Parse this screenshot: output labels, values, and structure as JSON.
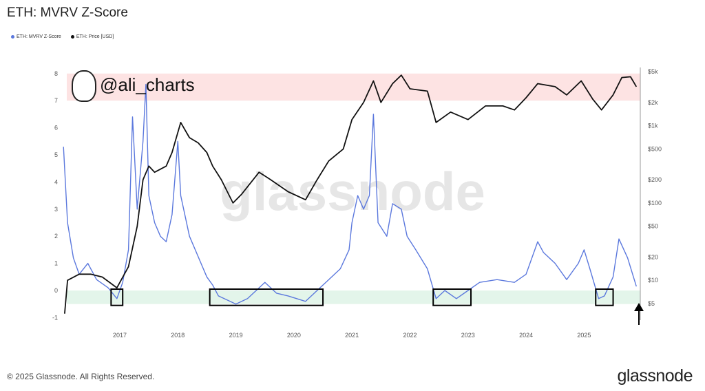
{
  "title": "ETH: MVRV Z-Score",
  "watermark": "glassnode",
  "handle": "@ali_charts",
  "footer": {
    "copyright": "© 2025 Glassnode. All Rights Reserved.",
    "brand": "glassnode"
  },
  "colors": {
    "zscore": "#5b78dd",
    "price": "#111111",
    "red_band": "#fde3e3",
    "green_band": "#e3f5ea"
  },
  "chart_data": {
    "type": "line",
    "title": "ETH: MVRV Z-Score",
    "legend": [
      "ETH: MVRV Z-Score",
      "ETH: Price [USD]"
    ],
    "legend_position": "top-left",
    "x_ticks": [
      "2017",
      "2018",
      "2019",
      "2020",
      "2021",
      "2022",
      "2023",
      "2024",
      "2025"
    ],
    "xlim": [
      2016.0,
      2026.0
    ],
    "y_left": {
      "ticks": [
        "8",
        "7",
        "6",
        "5",
        "4",
        "3",
        "2",
        "1",
        "0",
        "-1"
      ],
      "ylim": [
        -1,
        8
      ]
    },
    "y_right": {
      "scale": "log",
      "ticks": [
        "$5k",
        "$2k",
        "$1k",
        "$500",
        "$200",
        "$100",
        "$50",
        "$20",
        "$10",
        "$5"
      ],
      "values": [
        5000,
        2000,
        1000,
        500,
        200,
        100,
        50,
        20,
        10,
        5
      ]
    },
    "bands": [
      {
        "name": "red-zone",
        "from": 7,
        "to": 8
      },
      {
        "name": "green-zone",
        "from": -0.5,
        "to": 0
      }
    ],
    "boxes": [
      [
        2016.85,
        2017.05
      ],
      [
        2018.55,
        2020.5
      ],
      [
        2022.4,
        2023.05
      ],
      [
        2025.2,
        2025.5
      ]
    ],
    "series": [
      {
        "name": "ETH: MVRV Z-Score",
        "axis": "left",
        "points": [
          [
            2016.03,
            5.3
          ],
          [
            2016.1,
            2.5
          ],
          [
            2016.2,
            1.2
          ],
          [
            2016.3,
            0.6
          ],
          [
            2016.45,
            1.0
          ],
          [
            2016.6,
            0.4
          ],
          [
            2016.8,
            0.1
          ],
          [
            2016.95,
            -0.3
          ],
          [
            2017.05,
            0.3
          ],
          [
            2017.15,
            1.5
          ],
          [
            2017.22,
            6.4
          ],
          [
            2017.3,
            3.0
          ],
          [
            2017.4,
            5.5
          ],
          [
            2017.45,
            7.6
          ],
          [
            2017.5,
            3.5
          ],
          [
            2017.6,
            2.5
          ],
          [
            2017.7,
            2.0
          ],
          [
            2017.8,
            1.8
          ],
          [
            2017.9,
            2.8
          ],
          [
            2018.0,
            5.5
          ],
          [
            2018.05,
            3.5
          ],
          [
            2018.2,
            2.0
          ],
          [
            2018.3,
            1.5
          ],
          [
            2018.4,
            1.0
          ],
          [
            2018.5,
            0.5
          ],
          [
            2018.6,
            0.2
          ],
          [
            2018.7,
            -0.2
          ],
          [
            2018.9,
            -0.4
          ],
          [
            2019.0,
            -0.5
          ],
          [
            2019.2,
            -0.3
          ],
          [
            2019.4,
            0.1
          ],
          [
            2019.5,
            0.3
          ],
          [
            2019.7,
            -0.1
          ],
          [
            2019.9,
            -0.2
          ],
          [
            2020.2,
            -0.4
          ],
          [
            2020.4,
            0.0
          ],
          [
            2020.6,
            0.4
          ],
          [
            2020.8,
            0.8
          ],
          [
            2020.95,
            1.5
          ],
          [
            2021.0,
            2.5
          ],
          [
            2021.1,
            3.5
          ],
          [
            2021.2,
            3.0
          ],
          [
            2021.3,
            3.5
          ],
          [
            2021.37,
            6.5
          ],
          [
            2021.45,
            2.5
          ],
          [
            2021.6,
            2.0
          ],
          [
            2021.7,
            3.2
          ],
          [
            2021.85,
            3.0
          ],
          [
            2021.95,
            2.0
          ],
          [
            2022.1,
            1.5
          ],
          [
            2022.3,
            0.8
          ],
          [
            2022.45,
            -0.3
          ],
          [
            2022.6,
            0.0
          ],
          [
            2022.8,
            -0.3
          ],
          [
            2023.0,
            0.0
          ],
          [
            2023.2,
            0.3
          ],
          [
            2023.5,
            0.4
          ],
          [
            2023.8,
            0.3
          ],
          [
            2024.0,
            0.6
          ],
          [
            2024.2,
            1.8
          ],
          [
            2024.3,
            1.4
          ],
          [
            2024.5,
            1.0
          ],
          [
            2024.7,
            0.4
          ],
          [
            2024.9,
            1.0
          ],
          [
            2025.0,
            1.5
          ],
          [
            2025.1,
            0.8
          ],
          [
            2025.25,
            -0.3
          ],
          [
            2025.35,
            -0.2
          ],
          [
            2025.5,
            0.5
          ],
          [
            2025.6,
            1.9
          ],
          [
            2025.75,
            1.2
          ],
          [
            2025.9,
            0.15
          ]
        ]
      },
      {
        "name": "ETH: Price [USD]",
        "axis": "right",
        "points": [
          [
            2016.05,
            3.7
          ],
          [
            2016.1,
            10
          ],
          [
            2016.3,
            12
          ],
          [
            2016.5,
            12
          ],
          [
            2016.7,
            11
          ],
          [
            2016.95,
            8
          ],
          [
            2017.15,
            15
          ],
          [
            2017.3,
            50
          ],
          [
            2017.4,
            200
          ],
          [
            2017.5,
            300
          ],
          [
            2017.6,
            250
          ],
          [
            2017.8,
            300
          ],
          [
            2017.9,
            450
          ],
          [
            2018.05,
            1100
          ],
          [
            2018.2,
            700
          ],
          [
            2018.35,
            600
          ],
          [
            2018.5,
            450
          ],
          [
            2018.6,
            300
          ],
          [
            2018.75,
            200
          ],
          [
            2018.95,
            100
          ],
          [
            2019.1,
            130
          ],
          [
            2019.4,
            250
          ],
          [
            2019.6,
            200
          ],
          [
            2019.9,
            140
          ],
          [
            2020.2,
            110
          ],
          [
            2020.4,
            200
          ],
          [
            2020.6,
            350
          ],
          [
            2020.85,
            500
          ],
          [
            2021.0,
            1200
          ],
          [
            2021.2,
            2000
          ],
          [
            2021.37,
            3800
          ],
          [
            2021.5,
            2000
          ],
          [
            2021.7,
            3500
          ],
          [
            2021.85,
            4500
          ],
          [
            2022.0,
            3000
          ],
          [
            2022.3,
            2800
          ],
          [
            2022.45,
            1100
          ],
          [
            2022.7,
            1500
          ],
          [
            2023.0,
            1200
          ],
          [
            2023.3,
            1800
          ],
          [
            2023.6,
            1800
          ],
          [
            2023.8,
            1600
          ],
          [
            2024.0,
            2300
          ],
          [
            2024.2,
            3500
          ],
          [
            2024.5,
            3200
          ],
          [
            2024.7,
            2500
          ],
          [
            2024.95,
            3800
          ],
          [
            2025.15,
            2200
          ],
          [
            2025.3,
            1600
          ],
          [
            2025.5,
            2500
          ],
          [
            2025.65,
            4200
          ],
          [
            2025.8,
            4300
          ],
          [
            2025.9,
            3200
          ]
        ]
      }
    ]
  }
}
